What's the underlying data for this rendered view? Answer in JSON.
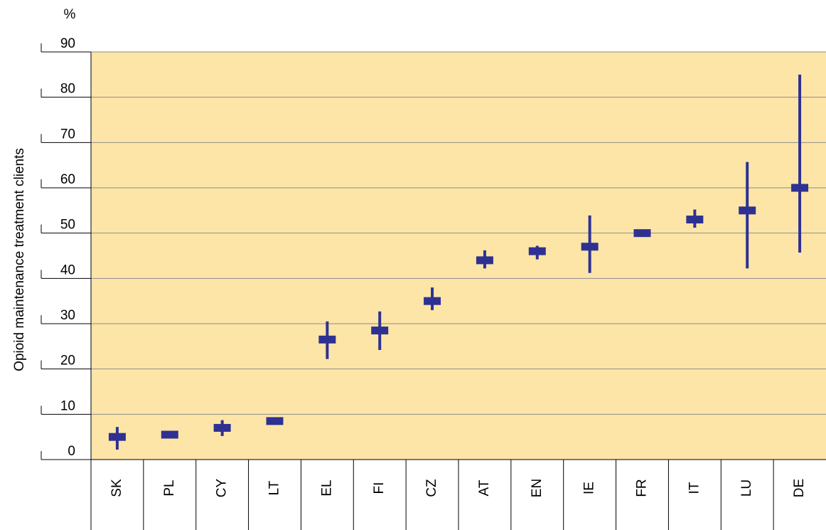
{
  "chart_data": {
    "type": "range",
    "unit_label": "%",
    "ylabel": "Opioid maintenance treatment clients",
    "xlabel": "",
    "ylim": [
      0,
      90
    ],
    "yticks": [
      "0",
      "10",
      "20",
      "30",
      "40",
      "50",
      "60",
      "70",
      "80",
      "90"
    ],
    "grid": true,
    "categories": [
      "SK",
      "PL",
      "CY",
      "LT",
      "EL",
      "FI",
      "CZ",
      "AT",
      "EN",
      "IE",
      "FR",
      "IT",
      "LU",
      "DE"
    ],
    "series": [
      {
        "estimate": [
          5,
          5.5,
          7,
          8.5,
          26.5,
          28.5,
          35,
          44,
          46,
          47,
          50,
          53,
          55,
          60
        ],
        "low": [
          2.2,
          5,
          5.2,
          8,
          22.2,
          24.2,
          33,
          42.2,
          44.2,
          41.2,
          49.8,
          51.2,
          42.2,
          45.7
        ],
        "high": [
          7.2,
          6,
          8.7,
          9,
          30.5,
          32.7,
          38,
          46.2,
          47.2,
          53.9,
          50.2,
          55.2,
          65.7,
          85
        ]
      }
    ],
    "colors": {
      "mark": "#2e3192",
      "plot_background": "#fde5a8",
      "grid": "#8c8c8c"
    }
  }
}
